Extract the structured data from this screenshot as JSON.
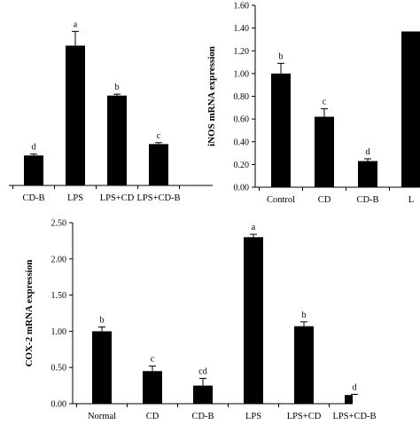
{
  "chart_data": [
    {
      "type": "bar",
      "categories": [
        "CD-B",
        "LPS",
        "LPS+CD",
        "LPS+CD-B"
      ],
      "values": [
        0.42,
        1.96,
        1.26,
        0.58
      ],
      "errors": [
        0.02,
        0.2,
        0.02,
        0.02
      ],
      "letters": [
        "d",
        "a",
        "b",
        "c"
      ],
      "ylim": [
        0,
        2.6
      ],
      "ylabel": "",
      "title": ""
    },
    {
      "type": "bar",
      "categories": [
        "Control",
        "CD",
        "CD-B",
        "L"
      ],
      "values": [
        1.0,
        0.62,
        0.23,
        1.37
      ],
      "errors": [
        0.09,
        0.07,
        0.02,
        0.0
      ],
      "letters": [
        "b",
        "c",
        "d",
        ""
      ],
      "ylim": [
        0,
        1.6
      ],
      "yticks": [
        "0.00",
        "0.20",
        "0.40",
        "0.60",
        "0.80",
        "1.00",
        "1.20",
        "1.40",
        "1.60"
      ],
      "ylabel": "iNOS  mRNA expression",
      "title": ""
    },
    {
      "type": "bar",
      "categories": [
        "Normal",
        "CD",
        "CD-B",
        "LPS",
        "LPS+CD",
        "LPS+CD-B"
      ],
      "values": [
        1.0,
        0.45,
        0.25,
        2.3,
        1.07,
        0.12
      ],
      "errors": [
        0.06,
        0.07,
        0.1,
        0.04,
        0.06,
        0.01
      ],
      "letters": [
        "b",
        "c",
        "cd",
        "a",
        "b",
        "d"
      ],
      "ylim": [
        0,
        2.5
      ],
      "yticks": [
        "0.00",
        "0.50",
        "1.00",
        "1.50",
        "2.00",
        "2.50"
      ],
      "ylabel": "COX-2  mRNA expression",
      "title": ""
    }
  ]
}
